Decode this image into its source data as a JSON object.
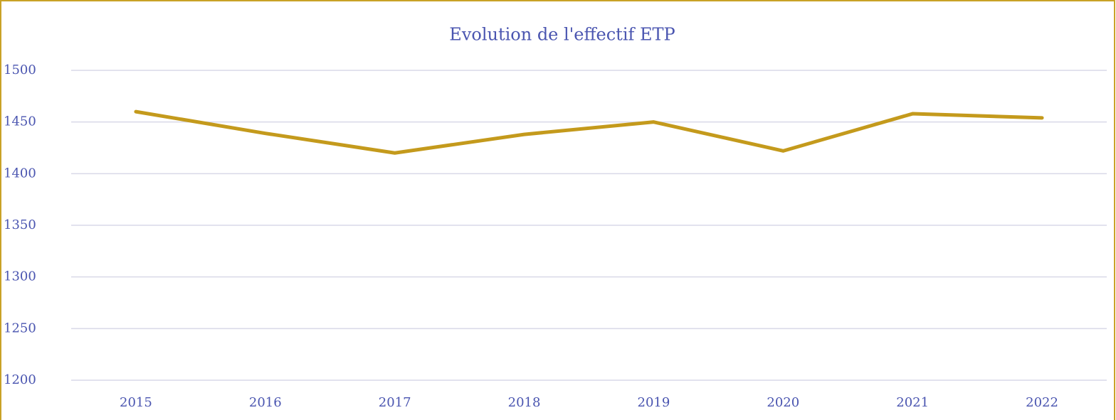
{
  "chart_data": {
    "type": "line",
    "title": "Evolution de l'effectif ETP",
    "categories": [
      "2015",
      "2016",
      "2017",
      "2018",
      "2019",
      "2020",
      "2021",
      "2022"
    ],
    "series": [
      {
        "name": "Effectif ETP",
        "color": "#c49a1c",
        "values": [
          1460,
          1439,
          1420,
          1438,
          1450,
          1422,
          1458,
          1454
        ]
      }
    ],
    "ylim": [
      1200,
      1500
    ],
    "yticks": [
      1200,
      1250,
      1300,
      1350,
      1400,
      1450,
      1500
    ],
    "grid": true
  }
}
